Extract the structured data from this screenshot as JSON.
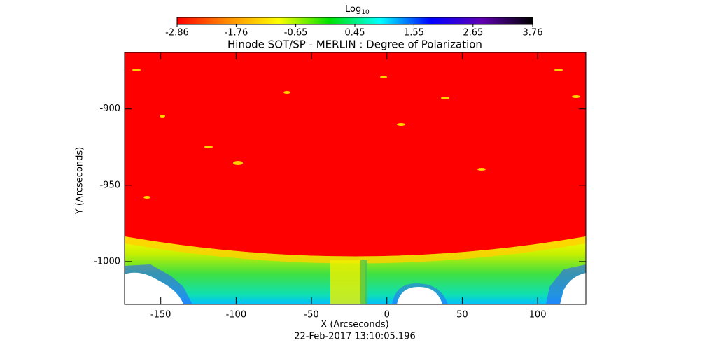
{
  "chart_data": {
    "type": "image",
    "title": "Hinode SOT/SP - MERLIN : Degree of Polarization",
    "x_label": "X (Arcseconds)",
    "y_label": "Y (Arcseconds)",
    "footer": "22-Feb-2017 13:10:05.196",
    "xlim": [
      -174,
      132
    ],
    "xticks": [
      -150,
      -100,
      -50,
      0,
      50,
      100
    ],
    "ylim": [
      -1028,
      -863
    ],
    "yticks": [
      -1000,
      -950,
      -900
    ],
    "colorbar_label": "Log",
    "colorbar_label_sub": "10",
    "colorbar_lim": [
      -2.86,
      3.76
    ],
    "colorbar_ticks": [
      -2.86,
      -1.76,
      -0.65,
      0.45,
      1.55,
      2.65,
      3.76
    ],
    "colormap": [
      "#ff0000",
      "#ff8c00",
      "#ffff00",
      "#00e000",
      "#00ffff",
      "#0000ff",
      "#6000b0",
      "#000000"
    ]
  }
}
